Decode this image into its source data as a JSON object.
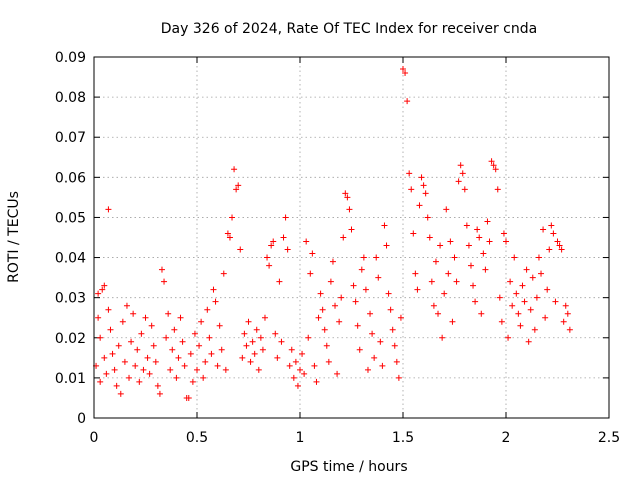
{
  "chart_data": {
    "type": "scatter",
    "title": "Day 326 of 2024, Rate Of TEC Index for receiver cnda",
    "xlabel": "GPS time / hours",
    "ylabel": "ROTI / TECUs",
    "xlim": [
      0,
      2.5
    ],
    "ylim": [
      0,
      0.09
    ],
    "xticks": [
      0,
      0.5,
      1,
      1.5,
      2,
      2.5
    ],
    "xtick_labels": [
      "0",
      "0.5",
      "1",
      "1.5",
      "2",
      "2.5"
    ],
    "yticks": [
      0,
      0.01,
      0.02,
      0.03,
      0.04,
      0.05,
      0.06,
      0.07,
      0.08,
      0.09
    ],
    "ytick_labels": [
      "0",
      "0.01",
      "0.02",
      "0.03",
      "0.04",
      "0.05",
      "0.06",
      "0.07",
      "0.08",
      "0.09"
    ],
    "grid": true,
    "marker": "+",
    "color": "#ff0000",
    "points": [
      [
        0.01,
        0.013
      ],
      [
        0.02,
        0.031
      ],
      [
        0.02,
        0.025
      ],
      [
        0.03,
        0.009
      ],
      [
        0.03,
        0.02
      ],
      [
        0.04,
        0.032
      ],
      [
        0.05,
        0.033
      ],
      [
        0.05,
        0.015
      ],
      [
        0.06,
        0.011
      ],
      [
        0.07,
        0.052
      ],
      [
        0.07,
        0.027
      ],
      [
        0.08,
        0.022
      ],
      [
        0.09,
        0.016
      ],
      [
        0.1,
        0.012
      ],
      [
        0.11,
        0.008
      ],
      [
        0.12,
        0.018
      ],
      [
        0.13,
        0.006
      ],
      [
        0.14,
        0.024
      ],
      [
        0.15,
        0.014
      ],
      [
        0.16,
        0.028
      ],
      [
        0.17,
        0.01
      ],
      [
        0.18,
        0.019
      ],
      [
        0.19,
        0.026
      ],
      [
        0.2,
        0.013
      ],
      [
        0.21,
        0.017
      ],
      [
        0.22,
        0.009
      ],
      [
        0.23,
        0.021
      ],
      [
        0.24,
        0.012
      ],
      [
        0.25,
        0.025
      ],
      [
        0.26,
        0.015
      ],
      [
        0.27,
        0.011
      ],
      [
        0.28,
        0.023
      ],
      [
        0.29,
        0.018
      ],
      [
        0.3,
        0.014
      ],
      [
        0.31,
        0.008
      ],
      [
        0.32,
        0.006
      ],
      [
        0.33,
        0.037
      ],
      [
        0.34,
        0.034
      ],
      [
        0.35,
        0.02
      ],
      [
        0.36,
        0.026
      ],
      [
        0.37,
        0.012
      ],
      [
        0.38,
        0.017
      ],
      [
        0.39,
        0.022
      ],
      [
        0.4,
        0.01
      ],
      [
        0.41,
        0.015
      ],
      [
        0.42,
        0.025
      ],
      [
        0.43,
        0.019
      ],
      [
        0.44,
        0.013
      ],
      [
        0.45,
        0.005
      ],
      [
        0.46,
        0.005
      ],
      [
        0.47,
        0.016
      ],
      [
        0.48,
        0.009
      ],
      [
        0.49,
        0.021
      ],
      [
        0.5,
        0.012
      ],
      [
        0.51,
        0.018
      ],
      [
        0.52,
        0.024
      ],
      [
        0.53,
        0.01
      ],
      [
        0.54,
        0.014
      ],
      [
        0.55,
        0.027
      ],
      [
        0.56,
        0.02
      ],
      [
        0.57,
        0.016
      ],
      [
        0.58,
        0.032
      ],
      [
        0.59,
        0.029
      ],
      [
        0.6,
        0.013
      ],
      [
        0.61,
        0.023
      ],
      [
        0.62,
        0.017
      ],
      [
        0.63,
        0.036
      ],
      [
        0.64,
        0.012
      ],
      [
        0.65,
        0.046
      ],
      [
        0.66,
        0.045
      ],
      [
        0.67,
        0.05
      ],
      [
        0.68,
        0.062
      ],
      [
        0.69,
        0.057
      ],
      [
        0.7,
        0.058
      ],
      [
        0.71,
        0.042
      ],
      [
        0.72,
        0.015
      ],
      [
        0.73,
        0.021
      ],
      [
        0.74,
        0.018
      ],
      [
        0.75,
        0.024
      ],
      [
        0.76,
        0.014
      ],
      [
        0.77,
        0.019
      ],
      [
        0.78,
        0.016
      ],
      [
        0.79,
        0.022
      ],
      [
        0.8,
        0.012
      ],
      [
        0.81,
        0.02
      ],
      [
        0.82,
        0.017
      ],
      [
        0.83,
        0.025
      ],
      [
        0.84,
        0.04
      ],
      [
        0.85,
        0.038
      ],
      [
        0.86,
        0.043
      ],
      [
        0.87,
        0.044
      ],
      [
        0.88,
        0.021
      ],
      [
        0.89,
        0.015
      ],
      [
        0.9,
        0.034
      ],
      [
        0.91,
        0.019
      ],
      [
        0.92,
        0.045
      ],
      [
        0.93,
        0.05
      ],
      [
        0.94,
        0.042
      ],
      [
        0.95,
        0.013
      ],
      [
        0.96,
        0.017
      ],
      [
        0.97,
        0.01
      ],
      [
        0.98,
        0.014
      ],
      [
        0.99,
        0.008
      ],
      [
        1.0,
        0.012
      ],
      [
        1.01,
        0.016
      ],
      [
        1.02,
        0.011
      ],
      [
        1.03,
        0.044
      ],
      [
        1.04,
        0.02
      ],
      [
        1.05,
        0.036
      ],
      [
        1.06,
        0.041
      ],
      [
        1.07,
        0.013
      ],
      [
        1.08,
        0.009
      ],
      [
        1.09,
        0.025
      ],
      [
        1.1,
        0.031
      ],
      [
        1.11,
        0.027
      ],
      [
        1.12,
        0.022
      ],
      [
        1.13,
        0.018
      ],
      [
        1.14,
        0.014
      ],
      [
        1.15,
        0.034
      ],
      [
        1.16,
        0.039
      ],
      [
        1.17,
        0.028
      ],
      [
        1.18,
        0.011
      ],
      [
        1.19,
        0.024
      ],
      [
        1.2,
        0.03
      ],
      [
        1.21,
        0.045
      ],
      [
        1.22,
        0.056
      ],
      [
        1.23,
        0.055
      ],
      [
        1.24,
        0.052
      ],
      [
        1.25,
        0.047
      ],
      [
        1.26,
        0.033
      ],
      [
        1.27,
        0.029
      ],
      [
        1.28,
        0.023
      ],
      [
        1.29,
        0.017
      ],
      [
        1.3,
        0.037
      ],
      [
        1.31,
        0.04
      ],
      [
        1.32,
        0.032
      ],
      [
        1.33,
        0.012
      ],
      [
        1.34,
        0.026
      ],
      [
        1.35,
        0.021
      ],
      [
        1.36,
        0.015
      ],
      [
        1.37,
        0.04
      ],
      [
        1.38,
        0.035
      ],
      [
        1.39,
        0.019
      ],
      [
        1.4,
        0.013
      ],
      [
        1.41,
        0.048
      ],
      [
        1.42,
        0.043
      ],
      [
        1.43,
        0.031
      ],
      [
        1.44,
        0.027
      ],
      [
        1.45,
        0.022
      ],
      [
        1.46,
        0.018
      ],
      [
        1.47,
        0.014
      ],
      [
        1.48,
        0.01
      ],
      [
        1.49,
        0.025
      ],
      [
        1.5,
        0.087
      ],
      [
        1.51,
        0.086
      ],
      [
        1.52,
        0.079
      ],
      [
        1.53,
        0.061
      ],
      [
        1.54,
        0.057
      ],
      [
        1.55,
        0.046
      ],
      [
        1.56,
        0.036
      ],
      [
        1.57,
        0.032
      ],
      [
        1.58,
        0.053
      ],
      [
        1.59,
        0.06
      ],
      [
        1.6,
        0.058
      ],
      [
        1.61,
        0.056
      ],
      [
        1.62,
        0.05
      ],
      [
        1.63,
        0.045
      ],
      [
        1.64,
        0.034
      ],
      [
        1.65,
        0.028
      ],
      [
        1.66,
        0.039
      ],
      [
        1.67,
        0.026
      ],
      [
        1.68,
        0.043
      ],
      [
        1.69,
        0.02
      ],
      [
        1.7,
        0.031
      ],
      [
        1.71,
        0.052
      ],
      [
        1.72,
        0.036
      ],
      [
        1.73,
        0.044
      ],
      [
        1.74,
        0.024
      ],
      [
        1.75,
        0.04
      ],
      [
        1.76,
        0.034
      ],
      [
        1.77,
        0.059
      ],
      [
        1.78,
        0.063
      ],
      [
        1.79,
        0.061
      ],
      [
        1.8,
        0.057
      ],
      [
        1.81,
        0.048
      ],
      [
        1.82,
        0.043
      ],
      [
        1.83,
        0.038
      ],
      [
        1.84,
        0.033
      ],
      [
        1.85,
        0.029
      ],
      [
        1.86,
        0.047
      ],
      [
        1.87,
        0.045
      ],
      [
        1.88,
        0.026
      ],
      [
        1.89,
        0.041
      ],
      [
        1.9,
        0.037
      ],
      [
        1.91,
        0.049
      ],
      [
        1.92,
        0.044
      ],
      [
        1.93,
        0.064
      ],
      [
        1.94,
        0.063
      ],
      [
        1.95,
        0.062
      ],
      [
        1.96,
        0.057
      ],
      [
        1.97,
        0.03
      ],
      [
        1.98,
        0.024
      ],
      [
        1.99,
        0.046
      ],
      [
        2.0,
        0.044
      ],
      [
        2.01,
        0.02
      ],
      [
        2.02,
        0.034
      ],
      [
        2.03,
        0.028
      ],
      [
        2.04,
        0.04
      ],
      [
        2.05,
        0.031
      ],
      [
        2.06,
        0.026
      ],
      [
        2.07,
        0.023
      ],
      [
        2.08,
        0.033
      ],
      [
        2.09,
        0.029
      ],
      [
        2.1,
        0.037
      ],
      [
        2.11,
        0.019
      ],
      [
        2.12,
        0.027
      ],
      [
        2.13,
        0.035
      ],
      [
        2.14,
        0.022
      ],
      [
        2.15,
        0.03
      ],
      [
        2.16,
        0.04
      ],
      [
        2.17,
        0.036
      ],
      [
        2.18,
        0.047
      ],
      [
        2.19,
        0.025
      ],
      [
        2.2,
        0.032
      ],
      [
        2.21,
        0.042
      ],
      [
        2.22,
        0.048
      ],
      [
        2.23,
        0.046
      ],
      [
        2.24,
        0.029
      ],
      [
        2.25,
        0.044
      ],
      [
        2.26,
        0.043
      ],
      [
        2.27,
        0.042
      ],
      [
        2.28,
        0.024
      ],
      [
        2.29,
        0.028
      ],
      [
        2.3,
        0.026
      ],
      [
        2.31,
        0.022
      ]
    ]
  }
}
